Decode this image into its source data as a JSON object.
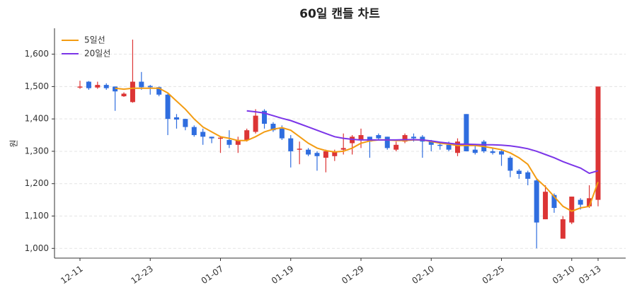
{
  "chart_data": {
    "type": "candlestick",
    "title": "60일 캔들 차트",
    "y_label": "원",
    "categories": [
      "12-11",
      null,
      null,
      null,
      null,
      null,
      null,
      null,
      "12-23",
      null,
      null,
      null,
      null,
      null,
      null,
      null,
      "01-07",
      null,
      null,
      null,
      null,
      null,
      null,
      null,
      "01-19",
      null,
      null,
      null,
      null,
      null,
      null,
      null,
      "01-29",
      null,
      null,
      null,
      null,
      null,
      null,
      null,
      "02-10",
      null,
      null,
      null,
      null,
      null,
      null,
      null,
      "02-25",
      null,
      null,
      null,
      null,
      null,
      null,
      null,
      "03-10",
      null,
      null,
      "03-13"
    ],
    "open": [
      1497,
      1515,
      1497,
      1505,
      1500,
      1470,
      1452,
      1515,
      1502,
      1498,
      1475,
      1405,
      1400,
      1375,
      1360,
      1345,
      1340,
      1335,
      1320,
      1335,
      1360,
      1425,
      1385,
      1370,
      1340,
      1305,
      1305,
      1295,
      1280,
      1285,
      1305,
      1325,
      1335,
      1345,
      1350,
      1345,
      1305,
      1330,
      1345,
      1345,
      1330,
      1320,
      1320,
      1295,
      1415,
      1305,
      1330,
      1300,
      1300,
      1280,
      1240,
      1235,
      1210,
      1090,
      1165,
      1030,
      1080,
      1150,
      1130,
      1150
    ],
    "high": [
      1518,
      1517,
      1515,
      1510,
      1500,
      1482,
      1645,
      1545,
      1505,
      1500,
      1480,
      1415,
      1400,
      1380,
      1370,
      1345,
      1345,
      1365,
      1345,
      1370,
      1430,
      1430,
      1390,
      1380,
      1350,
      1330,
      1310,
      1300,
      1305,
      1305,
      1355,
      1350,
      1370,
      1345,
      1355,
      1345,
      1330,
      1355,
      1355,
      1350,
      1335,
      1325,
      1330,
      1340,
      1415,
      1320,
      1335,
      1310,
      1305,
      1285,
      1245,
      1240,
      1215,
      1195,
      1170,
      1100,
      1160,
      1155,
      1195,
      1500
    ],
    "low": [
      1493,
      1490,
      1493,
      1490,
      1425,
      1468,
      1450,
      1490,
      1475,
      1470,
      1350,
      1370,
      1365,
      1345,
      1320,
      1325,
      1295,
      1310,
      1295,
      1330,
      1355,
      1370,
      1360,
      1335,
      1250,
      1260,
      1285,
      1240,
      1235,
      1270,
      1290,
      1290,
      1310,
      1280,
      1335,
      1305,
      1300,
      1325,
      1330,
      1280,
      1300,
      1305,
      1300,
      1285,
      1300,
      1290,
      1295,
      1290,
      1255,
      1220,
      1215,
      1195,
      1000,
      1090,
      1110,
      1030,
      1075,
      1120,
      1125,
      1130
    ],
    "close": [
      1500,
      1495,
      1505,
      1495,
      1485,
      1478,
      1515,
      1498,
      1498,
      1475,
      1400,
      1398,
      1375,
      1350,
      1345,
      1340,
      1342,
      1320,
      1335,
      1365,
      1410,
      1385,
      1365,
      1340,
      1300,
      1308,
      1290,
      1285,
      1300,
      1300,
      1310,
      1345,
      1350,
      1330,
      1340,
      1310,
      1320,
      1350,
      1340,
      1330,
      1320,
      1318,
      1305,
      1330,
      1300,
      1295,
      1300,
      1295,
      1290,
      1240,
      1230,
      1215,
      1080,
      1175,
      1125,
      1090,
      1160,
      1135,
      1155,
      1500
    ],
    "up_color": "#dc3535",
    "down_color": "#2f6ddf",
    "series": [
      {
        "name": "5일선",
        "color": "#f39c12",
        "values": [
          null,
          null,
          null,
          null,
          1495,
          1492,
          1495,
          1495,
          1495,
          1495,
          1480,
          1455,
          1430,
          1400,
          1375,
          1360,
          1345,
          1340,
          1333,
          1333,
          1345,
          1360,
          1368,
          1373,
          1365,
          1345,
          1325,
          1310,
          1302,
          1298,
          1300,
          1310,
          1325,
          1332,
          1335,
          1335,
          1333,
          1333,
          1335,
          1335,
          1330,
          1325,
          1322,
          1318,
          1318,
          1318,
          1315,
          1310,
          1305,
          1295,
          1280,
          1260,
          1215,
          1190,
          1160,
          1130,
          1115,
          1125,
          1130,
          1205
        ]
      },
      {
        "name": "20일선",
        "color": "#7b35e8",
        "values": [
          null,
          null,
          null,
          null,
          null,
          null,
          null,
          null,
          null,
          null,
          null,
          null,
          null,
          null,
          null,
          null,
          null,
          null,
          null,
          1425,
          1422,
          1418,
          1410,
          1402,
          1395,
          1385,
          1375,
          1365,
          1355,
          1345,
          1340,
          1337,
          1335,
          1335,
          1335,
          1335,
          1335,
          1336,
          1336,
          1335,
          1332,
          1328,
          1325,
          1322,
          1322,
          1321,
          1320,
          1320,
          1319,
          1317,
          1313,
          1308,
          1300,
          1290,
          1280,
          1268,
          1258,
          1248,
          1232,
          1240
        ]
      }
    ],
    "ylim": [
      970,
      1680
    ],
    "yticks": [
      {
        "value": 1000,
        "label": "1,000"
      },
      {
        "value": 1100,
        "label": "1,100"
      },
      {
        "value": 1200,
        "label": "1,200"
      },
      {
        "value": 1300,
        "label": "1,300"
      },
      {
        "value": 1400,
        "label": "1,400"
      },
      {
        "value": 1500,
        "label": "1,500"
      },
      {
        "value": 1600,
        "label": "1,600"
      }
    ],
    "grid": true,
    "legend": "upper-left"
  }
}
